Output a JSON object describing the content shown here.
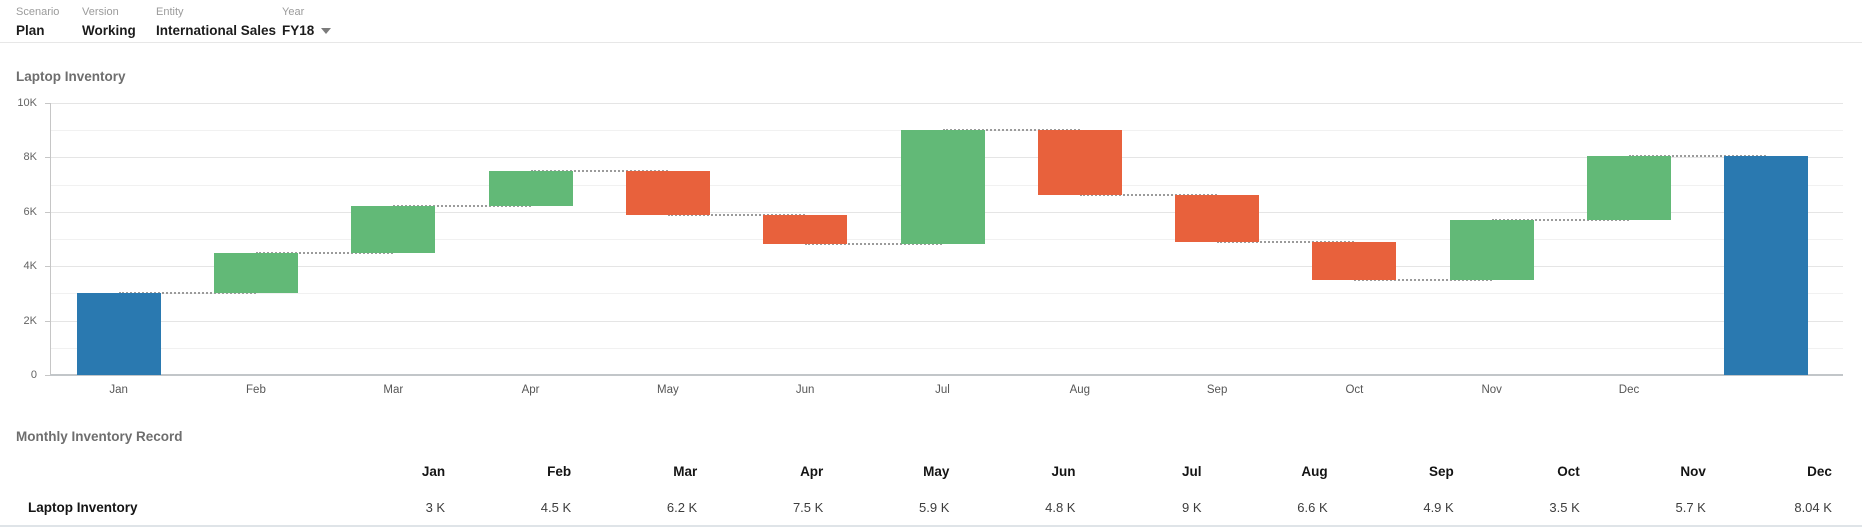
{
  "topbar": {
    "filters": [
      {
        "label": "Scenario",
        "value": "Plan",
        "dropdown": false
      },
      {
        "label": "Version",
        "value": "Working",
        "dropdown": false
      },
      {
        "label": "Entity",
        "value": "International Sales",
        "dropdown": false
      },
      {
        "label": "Year",
        "value": "FY18",
        "dropdown": true
      }
    ]
  },
  "chart": {
    "title": "Laptop Inventory",
    "colors": {
      "initial_total": "#2a79b0",
      "increase": "#62b977",
      "decrease": "#e8613c",
      "connector": "#9b9b9b",
      "grid_major": "#e5e5e5",
      "grid_minor": "#f1f1f1",
      "axis": "#c6c6c6"
    }
  },
  "chart_data": {
    "type": "bar",
    "subtype": "waterfall",
    "title": "Laptop Inventory",
    "unit": "K",
    "ylim": [
      0,
      10
    ],
    "grid": "horizontal, every 1K, labels every 2K",
    "legend": "none",
    "yticks": [
      {
        "label": "10K",
        "value": 10
      },
      {
        "label": "8K",
        "value": 8
      },
      {
        "label": "6K",
        "value": 6
      },
      {
        "label": "4K",
        "value": 4
      },
      {
        "label": "2K",
        "value": 2
      },
      {
        "label": "0",
        "value": 0
      }
    ],
    "categories": [
      "Jan",
      "Feb",
      "Mar",
      "Apr",
      "May",
      "Jun",
      "Jul",
      "Aug",
      "Sep",
      "Oct",
      "Nov",
      "Dec"
    ],
    "running_totals": [
      3,
      4.5,
      6.2,
      7.5,
      5.9,
      4.8,
      9,
      6.6,
      4.9,
      3.5,
      5.7,
      8.04
    ],
    "bars": [
      {
        "label": "Jan",
        "start": 0,
        "end": 3,
        "kind": "initial"
      },
      {
        "label": "Feb",
        "start": 3,
        "end": 4.5,
        "kind": "increase"
      },
      {
        "label": "Mar",
        "start": 4.5,
        "end": 6.2,
        "kind": "increase"
      },
      {
        "label": "Apr",
        "start": 6.2,
        "end": 7.5,
        "kind": "increase"
      },
      {
        "label": "May",
        "start": 7.5,
        "end": 5.9,
        "kind": "decrease"
      },
      {
        "label": "Jun",
        "start": 5.9,
        "end": 4.8,
        "kind": "decrease"
      },
      {
        "label": "Jul",
        "start": 4.8,
        "end": 9,
        "kind": "increase"
      },
      {
        "label": "Aug",
        "start": 9,
        "end": 6.6,
        "kind": "decrease"
      },
      {
        "label": "Sep",
        "start": 6.6,
        "end": 4.9,
        "kind": "decrease"
      },
      {
        "label": "Oct",
        "start": 4.9,
        "end": 3.5,
        "kind": "decrease"
      },
      {
        "label": "Nov",
        "start": 3.5,
        "end": 5.7,
        "kind": "increase"
      },
      {
        "label": "Dec",
        "start": 5.7,
        "end": 8.04,
        "kind": "increase"
      },
      {
        "label": "",
        "start": 0,
        "end": 8.04,
        "kind": "total"
      }
    ]
  },
  "table": {
    "title": "Monthly Inventory Record",
    "row_label": "Laptop Inventory",
    "columns": [
      "Jan",
      "Feb",
      "Mar",
      "Apr",
      "May",
      "Jun",
      "Jul",
      "Aug",
      "Sep",
      "Oct",
      "Nov",
      "Dec"
    ],
    "values": [
      "3 K",
      "4.5 K",
      "6.2 K",
      "7.5 K",
      "5.9 K",
      "4.8 K",
      "9 K",
      "6.6 K",
      "4.9 K",
      "3.5 K",
      "5.7 K",
      "8.04 K"
    ]
  }
}
